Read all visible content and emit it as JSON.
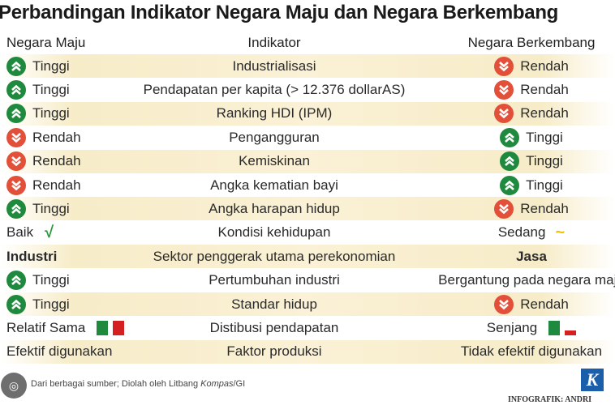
{
  "title": "Perbandingan Indikator Negara Maju dan Negara Berkembang",
  "headers": {
    "left": "Negara Maju",
    "middle": "Indikator",
    "right": "Negara Berkembang"
  },
  "colors": {
    "up": "#1f8a3e",
    "down": "#e2503a",
    "stripe": "#f7ecc8"
  },
  "rows": [
    {
      "left": {
        "icon": "up",
        "text": "Tinggi"
      },
      "middle": "Industrialisasi",
      "right": {
        "icon": "down",
        "text": "Rendah"
      }
    },
    {
      "left": {
        "icon": "up",
        "text": "Tinggi"
      },
      "middle": "Pendapatan per kapita (> 12.376 dollarAS)",
      "right": {
        "icon": "down",
        "text": "Rendah"
      }
    },
    {
      "left": {
        "icon": "up",
        "text": "Tinggi"
      },
      "middle": "Ranking HDI (IPM)",
      "right": {
        "icon": "down",
        "text": "Rendah"
      }
    },
    {
      "left": {
        "icon": "down",
        "text": "Rendah"
      },
      "middle": "Pengangguran",
      "right": {
        "icon": "up",
        "text": "Tinggi"
      }
    },
    {
      "left": {
        "icon": "down",
        "text": "Rendah"
      },
      "middle": "Kemiskinan",
      "right": {
        "icon": "up",
        "text": "Tinggi"
      }
    },
    {
      "left": {
        "icon": "down",
        "text": "Rendah"
      },
      "middle": "Angka kematian bayi",
      "right": {
        "icon": "up",
        "text": "Tinggi"
      }
    },
    {
      "left": {
        "icon": "up",
        "text": "Tinggi"
      },
      "middle": "Angka harapan hidup",
      "right": {
        "icon": "down",
        "text": "Rendah"
      }
    },
    {
      "left": {
        "icon": "check",
        "text": "Baik"
      },
      "middle": "Kondisi kehidupan",
      "right": {
        "icon": "wave",
        "text": "Sedang"
      }
    },
    {
      "left": {
        "icon": "none",
        "text": "Industri",
        "bold": true
      },
      "middle": "Sektor penggerak utama perekonomian",
      "right": {
        "icon": "none",
        "text": "Jasa",
        "bold": true
      }
    },
    {
      "left": {
        "icon": "up",
        "text": "Tinggi"
      },
      "middle": "Pertumbuhan industri",
      "right": {
        "icon": "none",
        "text": "Bergantung pada negara maju"
      }
    },
    {
      "left": {
        "icon": "up",
        "text": "Tinggi"
      },
      "middle": "Standar hidup",
      "right": {
        "icon": "down",
        "text": "Rendah"
      }
    },
    {
      "left": {
        "icon": "bars-equal",
        "text": "Relatif Sama"
      },
      "middle": "Distibusi pendapatan",
      "right": {
        "icon": "bars-unequal",
        "text": "Senjang"
      }
    },
    {
      "left": {
        "icon": "none",
        "text": "Efektif digunakan"
      },
      "middle": "Faktor produksi",
      "right": {
        "icon": "none",
        "text": "Tidak efektif digunakan"
      }
    }
  ],
  "footer": {
    "source_prefix": "Dari berbagai sumber; Diolah oleh Litbang ",
    "source_italic": "Kompas",
    "source_suffix": "/GI",
    "logo": "K",
    "credit": "INFOGRAFIK: ANDRI"
  }
}
